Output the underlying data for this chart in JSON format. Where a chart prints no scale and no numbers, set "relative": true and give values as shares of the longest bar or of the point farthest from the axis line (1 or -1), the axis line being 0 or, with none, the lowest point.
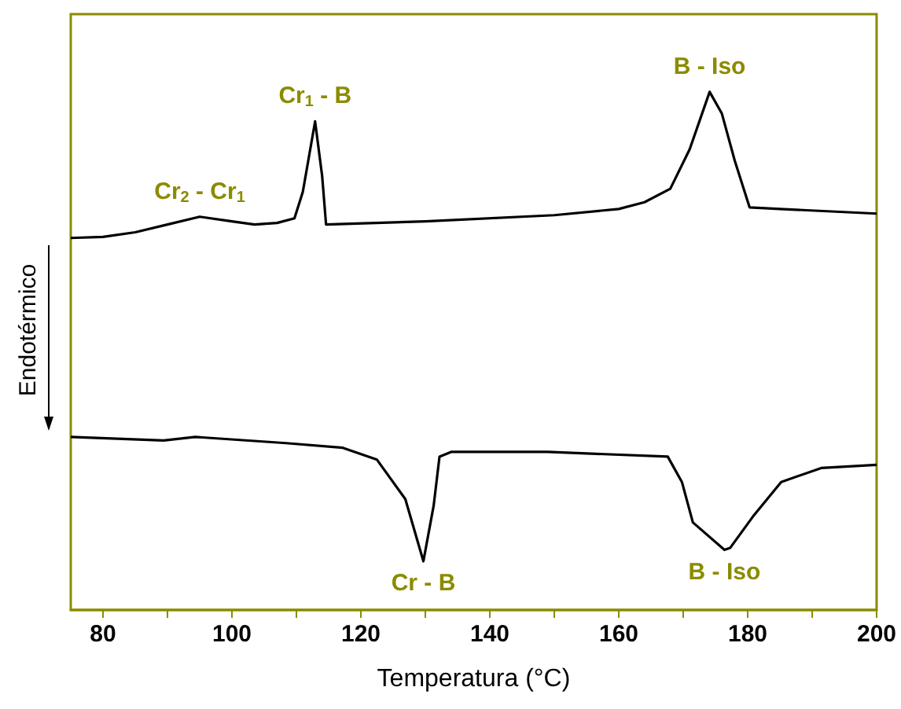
{
  "chart_data": {
    "type": "line",
    "relative": true,
    "xlabel": "Temperatura (°C)",
    "ylabel": "Endotérmico",
    "xlim": [
      75,
      200
    ],
    "xticks": [
      80,
      {
        "value": 90,
        "label": null
      },
      100,
      {
        "value": 110,
        "label": null
      },
      120,
      {
        "value": 130,
        "label": null
      },
      140,
      {
        "value": 150,
        "label": null
      },
      160,
      {
        "value": 170,
        "label": null
      },
      180,
      {
        "value": 190,
        "label": null
      },
      200
    ],
    "marker": "none",
    "line_style": "solid",
    "grid": false,
    "series": [
      {
        "color": "#000000",
        "x": [
          75,
          80,
          85,
          90,
          95,
          100,
          103.5,
          107,
          109.7,
          111,
          112.9,
          114,
          114.6,
          130,
          150,
          160,
          164,
          168,
          171,
          174.1,
          176,
          178,
          180.3,
          185,
          200
        ],
        "values": [
          0.718,
          0.72,
          0.729,
          0.744,
          0.759,
          0.75,
          0.744,
          0.747,
          0.756,
          0.807,
          0.943,
          0.837,
          0.744,
          0.75,
          0.762,
          0.774,
          0.787,
          0.813,
          0.889,
          1,
          0.958,
          0.867,
          0.777,
          0.774,
          0.765
        ]
      },
      {
        "color": "#000000",
        "x": [
          75,
          89.4,
          94.3,
          108.4,
          117.2,
          122.5,
          126.9,
          129.7,
          131.3,
          132.2,
          134,
          149,
          167.6,
          169.8,
          171.5,
          176.4,
          177.3,
          180.8,
          185.2,
          191.4,
          200
        ],
        "values": [
          0.334,
          0.327,
          0.334,
          0.322,
          0.313,
          0.29,
          0.214,
          0.094,
          0.202,
          0.296,
          0.305,
          0.305,
          0.296,
          0.247,
          0.169,
          0.116,
          0.12,
          0.18,
          0.247,
          0.274,
          0.28
        ]
      }
    ],
    "annotations": [
      {
        "text": "Cr$_{2}$ - Cr$_{1}$",
        "x": 95,
        "y": 0.759
      },
      {
        "text": "Cr$_{1}$ - B",
        "x": 112.9,
        "y": 0.943
      },
      {
        "text": "B - Iso",
        "x": 174.1,
        "y": 1
      },
      {
        "text": "Cr - B",
        "x": 129.7,
        "y": 0.094
      },
      {
        "text": "B - Iso",
        "x": 176.4,
        "y": 0.116
      }
    ]
  }
}
